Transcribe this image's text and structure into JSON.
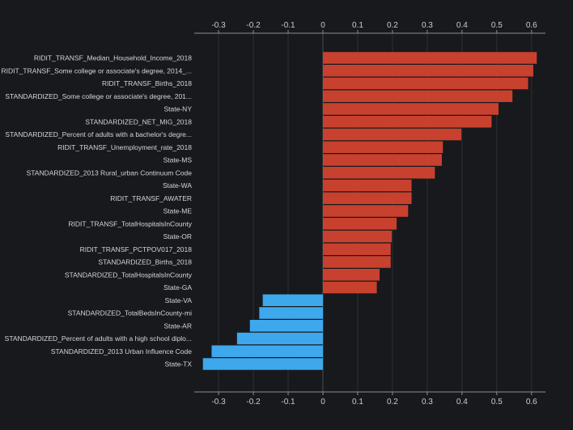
{
  "chart_data": {
    "type": "bar",
    "orientation": "horizontal",
    "categories": [
      "RIDIT_TRANSF_Median_Household_Income_2018",
      "RIDIT_TRANSF_Some college or associate's degree, 2014_...",
      "RIDIT_TRANSF_Births_2018",
      "STANDARDIZED_Some college or associate's degree, 201...",
      "State-NY",
      "STANDARDIZED_NET_MIG_2018",
      "STANDARDIZED_Percent of adults with a bachelor's degre...",
      "RIDIT_TRANSF_Unemployment_rate_2018",
      "State-MS",
      "STANDARDIZED_2013 Rural_urban Continuum Code",
      "State-WA",
      "RIDIT_TRANSF_AWATER",
      "State-ME",
      "RIDIT_TRANSF_TotalHospitalsInCounty",
      "State-OR",
      "RIDIT_TRANSF_PCTPOV017_2018",
      "STANDARDIZED_Births_2018",
      "STANDARDIZED_TotalHospitalsInCounty",
      "State-GA",
      "State-VA",
      "STANDARDIZED_TotalBedsInCounty-mi",
      "State-AR",
      "STANDARDIZED_Percent of adults with a high school diplo...",
      "STANDARDIZED_2013 Urban Influence Code",
      "State-TX"
    ],
    "values": [
      0.615,
      0.605,
      0.59,
      0.545,
      0.505,
      0.485,
      0.398,
      0.345,
      0.342,
      0.322,
      0.255,
      0.255,
      0.245,
      0.212,
      0.198,
      0.195,
      0.195,
      0.163,
      0.155,
      -0.173,
      -0.183,
      -0.21,
      -0.247,
      -0.32,
      -0.345
    ],
    "xlim": [
      -0.37,
      0.64
    ],
    "xticks": [
      -0.3,
      -0.2,
      -0.1,
      0,
      0.1,
      0.2,
      0.3,
      0.4,
      0.5,
      0.6
    ],
    "xtick_labels": [
      "-0.3",
      "-0.2",
      "-0.1",
      "0",
      "0.1",
      "0.2",
      "0.3",
      "0.4",
      "0.5",
      "0.6"
    ],
    "title": "",
    "xlabel": "",
    "ylabel": "",
    "grid": true,
    "colors": {
      "positive": "#c8412f",
      "negative": "#3ea8ec",
      "background": "#17191d",
      "grid": "#2d3036",
      "axis": "#8a8d93",
      "text": "#d4d6da"
    }
  }
}
